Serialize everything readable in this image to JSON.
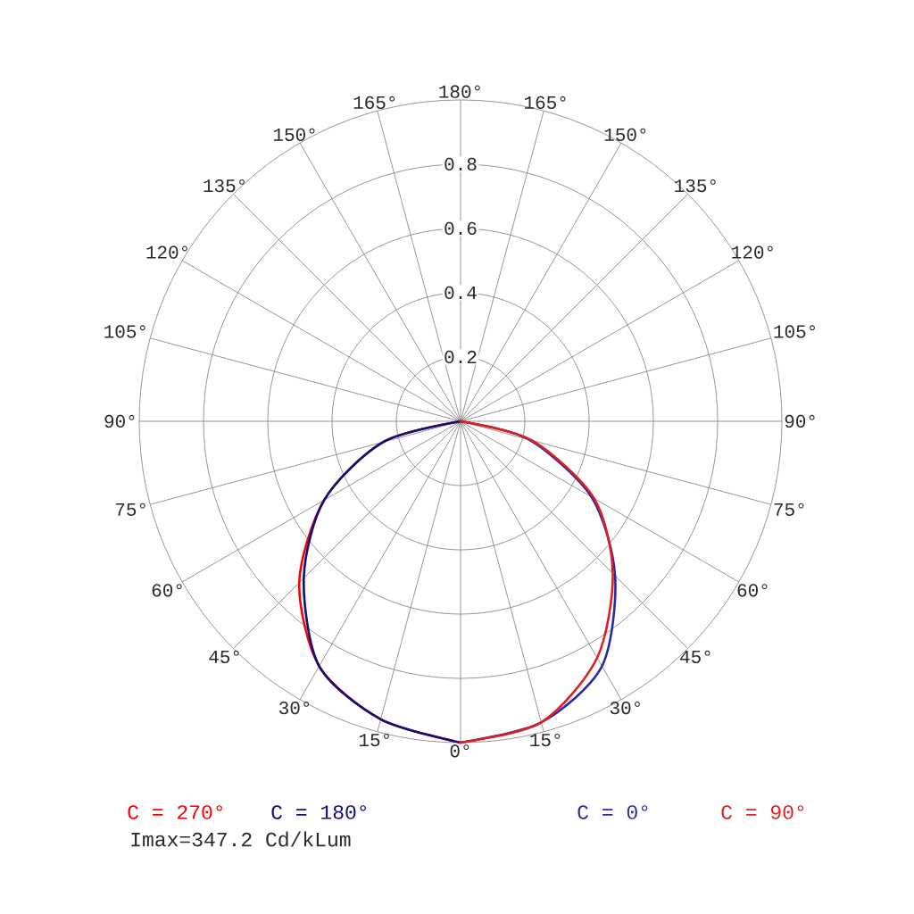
{
  "chart_data": {
    "type": "radar",
    "categories": [
      "180°",
      "165°",
      "150°",
      "135°",
      "120°",
      "105°",
      "90°",
      "75°",
      "60°",
      "45°",
      "30°",
      "15°",
      "0°",
      "15°",
      "30°",
      "45°",
      "60°",
      "75°",
      "90°",
      "105°",
      "120°",
      "135°",
      "150°",
      "165°"
    ],
    "series": [
      {
        "name": "C = 270°",
        "color": "#ff0000",
        "values": [
          null,
          null,
          null,
          null,
          null,
          null,
          null,
          null,
          null,
          null,
          null,
          null,
          1.0,
          0.96,
          0.88,
          0.71,
          0.49,
          0.25,
          0,
          null,
          null,
          null,
          null,
          null
        ]
      },
      {
        "name": "C = 180°",
        "color": "#10107a",
        "values": [
          null,
          null,
          null,
          null,
          null,
          null,
          null,
          null,
          null,
          null,
          null,
          null,
          1.0,
          0.96,
          0.88,
          0.69,
          0.49,
          0.25,
          0,
          null,
          null,
          null,
          null,
          null
        ]
      },
      {
        "name": "C = 0°",
        "color": "#2a2aa8",
        "values": [
          null,
          null,
          null,
          null,
          null,
          null,
          0,
          0.22,
          0.47,
          0.68,
          0.88,
          0.97,
          1.0,
          null,
          null,
          null,
          null,
          null,
          null,
          null,
          null,
          null,
          null,
          null
        ]
      },
      {
        "name": "C = 90°",
        "color": "#e02020",
        "values": [
          null,
          null,
          null,
          null,
          null,
          null,
          0,
          0.23,
          0.48,
          0.67,
          0.85,
          0.97,
          1.0,
          null,
          null,
          null,
          null,
          null,
          null,
          null,
          null,
          null,
          null,
          null
        ]
      }
    ],
    "ylim": [
      0,
      1
    ],
    "yticks": [
      0.2,
      0.4,
      0.6,
      0.8
    ],
    "grid": true,
    "annotations": [
      "Imax=347.2 Cd/kLum"
    ]
  }
}
